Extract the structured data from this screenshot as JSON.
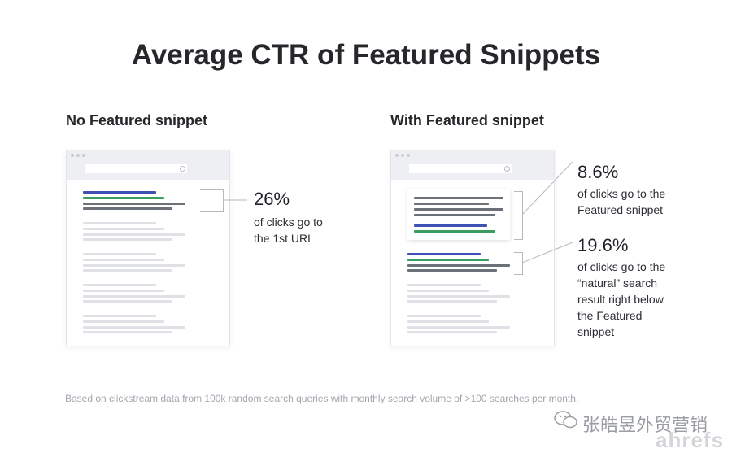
{
  "title": "Average CTR of Featured Snippets",
  "left_panel": {
    "heading": "No Featured snippet",
    "stat": {
      "value": "26%",
      "lines": [
        "of clicks go to",
        "the 1st URL"
      ]
    }
  },
  "right_panel": {
    "heading": "With Featured snippet",
    "stat_top": {
      "value": "8.6%",
      "lines": [
        "of clicks go to the",
        "Featured snippet"
      ]
    },
    "stat_bottom": {
      "value": "19.6%",
      "lines": [
        "of clicks go to the",
        "“natural” search",
        "result right below",
        "the Featured",
        "snippet"
      ]
    }
  },
  "footnote": "Based on clickstream data from 100k random search queries with monthly search volume of >100 searches per month.",
  "watermark": {
    "chinese": "张皓昱外贸营销",
    "brand": "ahrefs"
  },
  "colors": {
    "blue": "#3f51b5",
    "green": "#3a9e61",
    "gray": "#6c7079",
    "light": "#dfe1e6"
  }
}
